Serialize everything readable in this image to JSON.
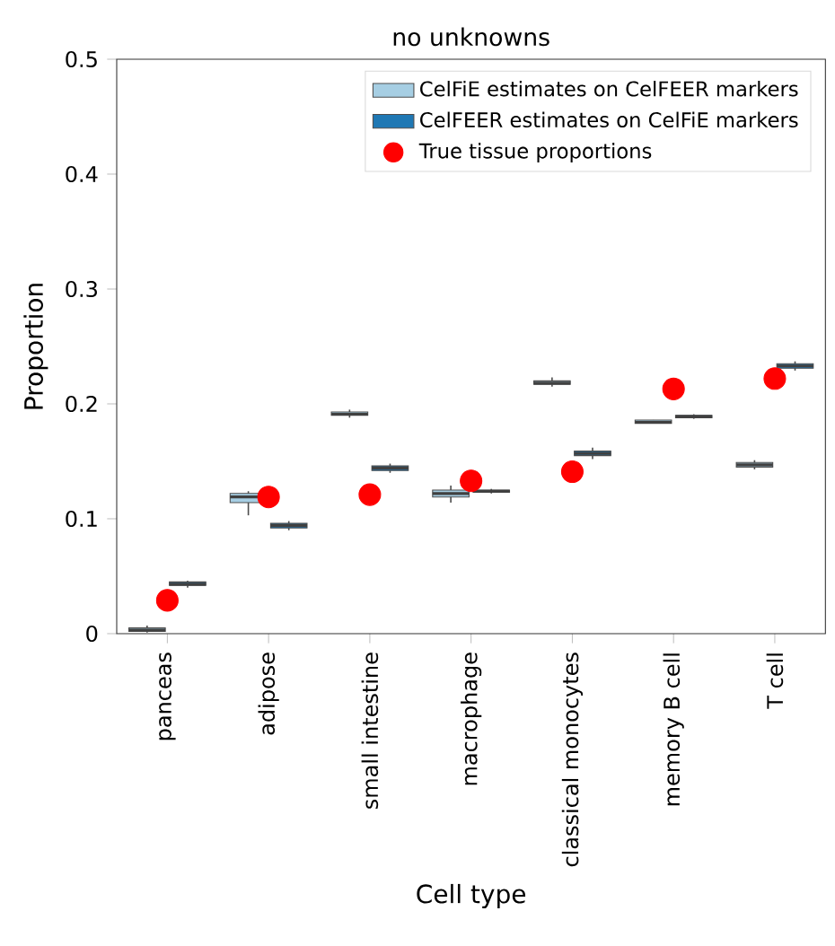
{
  "chart_data": {
    "type": "box",
    "title": "no unknowns",
    "xlabel": "Cell type",
    "ylabel": "Proportion",
    "categories": [
      "panceas",
      "adipose",
      "small intestine",
      "macrophage",
      "classical monocytes",
      "memory B cell",
      "T cell"
    ],
    "ylim": [
      0,
      0.5
    ],
    "yticks": [
      0,
      0.1,
      0.2,
      0.3,
      0.4,
      0.5
    ],
    "legend": "top right",
    "series": [
      {
        "name": "CelFiE estimates on CelFEER markers",
        "color": "#a6cee3",
        "boxes": [
          {
            "low": 0.001,
            "q1": 0.002,
            "median": 0.003,
            "q3": 0.005,
            "high": 0.007
          },
          {
            "low": 0.103,
            "q1": 0.114,
            "median": 0.119,
            "q3": 0.122,
            "high": 0.124
          },
          {
            "low": 0.188,
            "q1": 0.19,
            "median": 0.191,
            "q3": 0.193,
            "high": 0.195
          },
          {
            "low": 0.114,
            "q1": 0.119,
            "median": 0.122,
            "q3": 0.125,
            "high": 0.129
          },
          {
            "low": 0.215,
            "q1": 0.217,
            "median": 0.218,
            "q3": 0.22,
            "high": 0.223
          },
          {
            "low": 0.183,
            "q1": 0.183,
            "median": 0.184,
            "q3": 0.186,
            "high": 0.186
          },
          {
            "low": 0.143,
            "q1": 0.145,
            "median": 0.147,
            "q3": 0.149,
            "high": 0.151
          }
        ]
      },
      {
        "name": "CelFEER estimates on CelFiE markers",
        "color": "#1f78b4",
        "boxes": [
          {
            "low": 0.04,
            "q1": 0.042,
            "median": 0.043,
            "q3": 0.045,
            "high": 0.046
          },
          {
            "low": 0.09,
            "q1": 0.092,
            "median": 0.094,
            "q3": 0.096,
            "high": 0.098
          },
          {
            "low": 0.14,
            "q1": 0.142,
            "median": 0.144,
            "q3": 0.146,
            "high": 0.148
          },
          {
            "low": 0.122,
            "q1": 0.123,
            "median": 0.124,
            "q3": 0.125,
            "high": 0.126
          },
          {
            "low": 0.152,
            "q1": 0.155,
            "median": 0.157,
            "q3": 0.159,
            "high": 0.162
          },
          {
            "low": 0.187,
            "q1": 0.188,
            "median": 0.189,
            "q3": 0.19,
            "high": 0.191
          },
          {
            "low": 0.229,
            "q1": 0.231,
            "median": 0.233,
            "q3": 0.235,
            "high": 0.237
          }
        ]
      },
      {
        "name": "True tissue proportions",
        "type": "scatter",
        "color": "#ff0000",
        "x": [
          "panceas",
          "adipose",
          "small intestine",
          "macrophage",
          "classical monocytes",
          "memory B cell",
          "T cell"
        ],
        "values": [
          0.029,
          0.119,
          0.121,
          0.133,
          0.141,
          0.213,
          0.222
        ]
      }
    ]
  }
}
